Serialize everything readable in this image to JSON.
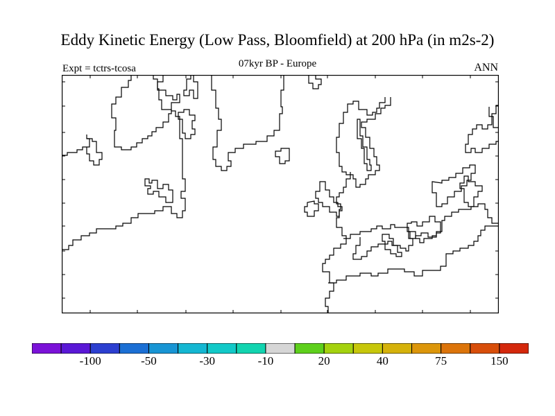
{
  "title": "Eddy Kinetic Energy (Low Pass, Bloomfield) at 200 hPa (in m2s-2)",
  "subtitle_left": "Expt = tctrs-tcosa",
  "subtitle_center": "07kyr BP - Europe",
  "subtitle_right": "ANN",
  "colorbar": {
    "colors": [
      "#7b12d8",
      "#5a18d6",
      "#2c3fd0",
      "#1b6fd4",
      "#1895d4",
      "#14b7d2",
      "#12c9c8",
      "#12d4b0",
      "#d6d6d6",
      "#5ed01c",
      "#a4d20e",
      "#c7c70a",
      "#d5b20a",
      "#dc960a",
      "#dc740a",
      "#d84e0a",
      "#d4280c"
    ],
    "labels": [
      "-100",
      "-50",
      "-30",
      "-10",
      "20",
      "40",
      "75",
      "150"
    ]
  }
}
